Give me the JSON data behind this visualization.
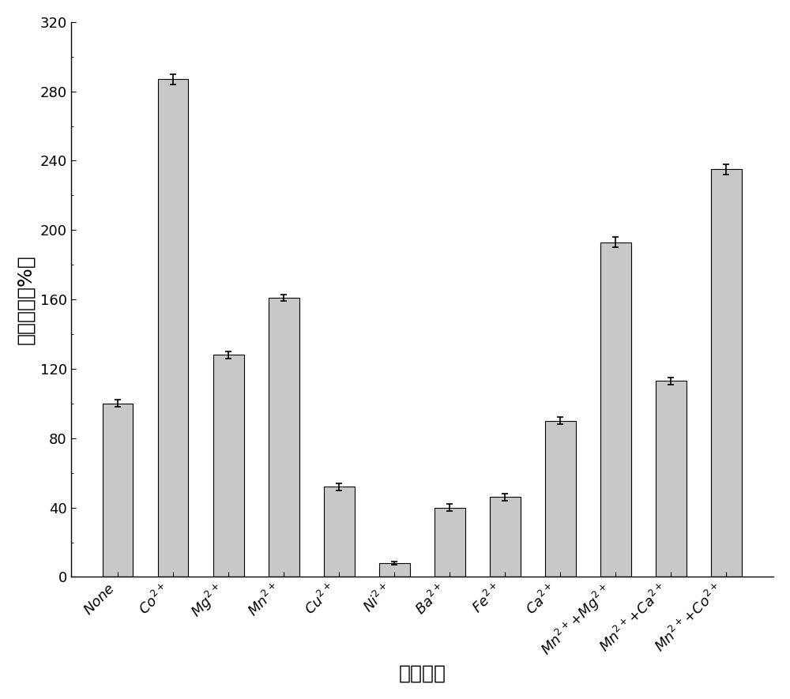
{
  "categories_raw": [
    "None",
    "Co",
    "Mg",
    "Mn",
    "Cu",
    "Ni",
    "Ba",
    "Fe",
    "Ca",
    "Mn+Mg",
    "Mn+Ca",
    "Mn+Co"
  ],
  "superscripts": [
    "",
    "2+",
    "2+",
    "2+",
    "2+",
    "2+",
    "2+",
    "2+",
    "2+",
    "2+",
    "2+",
    "2+"
  ],
  "combo_labels": [
    false,
    false,
    false,
    false,
    false,
    false,
    false,
    false,
    false,
    true,
    true,
    true
  ],
  "values": [
    100,
    287,
    128,
    161,
    52,
    8,
    40,
    46,
    90,
    193,
    113,
    235
  ],
  "errors": [
    2,
    3,
    2,
    2,
    2,
    1,
    2,
    2,
    2,
    3,
    2,
    3
  ],
  "bar_color": "#c8c8c8",
  "bar_edgecolor": "#000000",
  "ylabel": "相对醂活（%）",
  "xlabel": "金属离子",
  "ylim": [
    0,
    320
  ],
  "yticks": [
    0,
    40,
    80,
    120,
    160,
    200,
    240,
    280,
    320
  ],
  "label_fontsize": 18,
  "tick_fontsize": 13,
  "bar_width": 0.55,
  "background_color": "#ffffff"
}
